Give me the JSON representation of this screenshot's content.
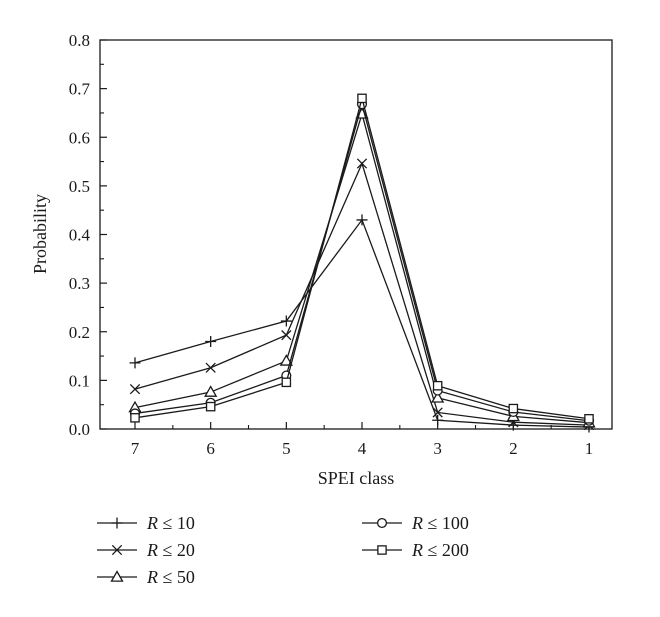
{
  "chart_data": {
    "type": "line",
    "xlabel": "SPEI class",
    "ylabel": "Probability",
    "categories": [
      "7",
      "6",
      "5",
      "4",
      "3",
      "2",
      "1"
    ],
    "ylim": [
      0,
      0.8
    ],
    "yticks": [
      "0.0",
      "0.1",
      "0.2",
      "0.3",
      "0.4",
      "0.5",
      "0.6",
      "0.7",
      "0.8"
    ],
    "grid": false,
    "legend_position": "bottom",
    "series": [
      {
        "name": "R ≤ 10",
        "var": "R",
        "op": " ≤ 10",
        "marker": "plus",
        "values": [
          0.136,
          0.18,
          0.222,
          0.43,
          0.018,
          0.008,
          0.004
        ]
      },
      {
        "name": "R ≤ 20",
        "var": "R",
        "op": " ≤ 20",
        "marker": "x",
        "values": [
          0.082,
          0.126,
          0.193,
          0.546,
          0.034,
          0.014,
          0.008
        ]
      },
      {
        "name": "R ≤ 50",
        "var": "R",
        "op": " ≤ 50",
        "marker": "triangle",
        "values": [
          0.044,
          0.076,
          0.14,
          0.648,
          0.064,
          0.026,
          0.013
        ]
      },
      {
        "name": "R ≤ 100",
        "var": "R",
        "op": " ≤ 100",
        "marker": "circle",
        "values": [
          0.032,
          0.054,
          0.11,
          0.668,
          0.079,
          0.035,
          0.017
        ]
      },
      {
        "name": "R ≤ 200",
        "var": "R",
        "op": " ≤ 200",
        "marker": "square",
        "values": [
          0.023,
          0.046,
          0.096,
          0.68,
          0.089,
          0.042,
          0.021
        ]
      }
    ]
  }
}
